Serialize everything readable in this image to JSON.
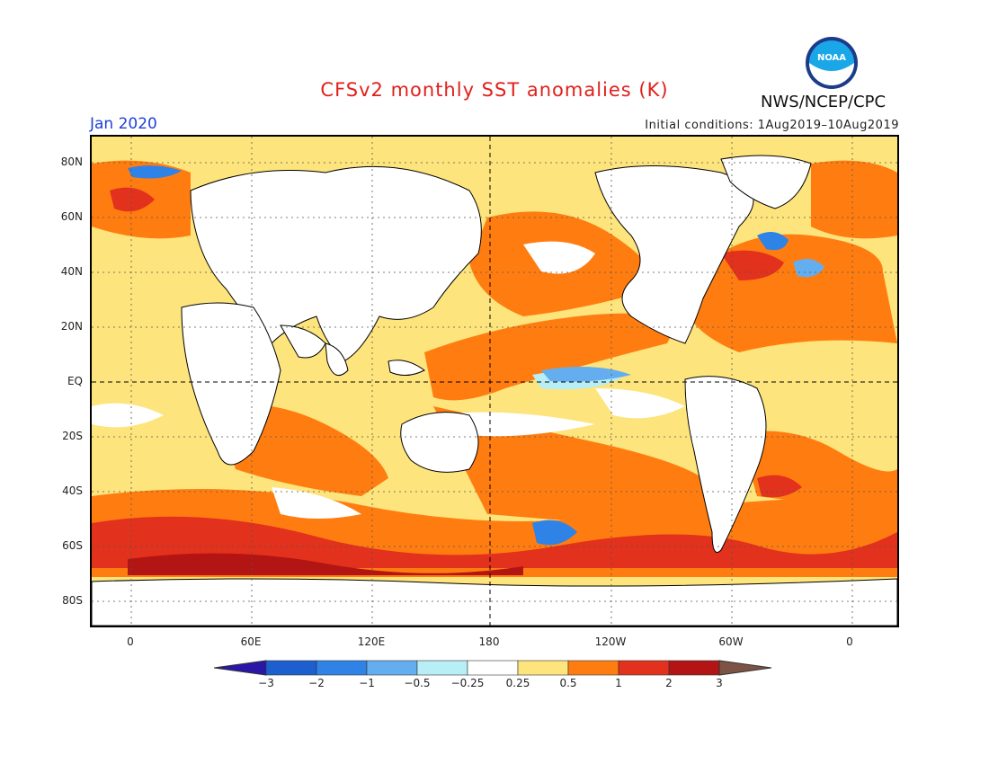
{
  "title": "CFSv2 monthly SST anomalies (K)",
  "valid_month": "Jan 2020",
  "initial_conditions": "Initial conditions: 1Aug2019–10Aug2019",
  "organization": "NWS/NCEP/CPC",
  "logo_text": "NOAA",
  "map": {
    "lat_labels": [
      "80N",
      "60N",
      "40N",
      "20N",
      "EQ",
      "20S",
      "40S",
      "60S",
      "80S"
    ],
    "lon_labels": [
      "0",
      "60E",
      "120E",
      "180",
      "120W",
      "60W",
      "0"
    ]
  },
  "colorbar": {
    "tick_labels": [
      "−3",
      "−2",
      "−1",
      "−0.5",
      "−0.25",
      "0.25",
      "0.5",
      "1",
      "2",
      "3"
    ],
    "colors": [
      "#2a17a8",
      "#1e5fd0",
      "#2f82e6",
      "#64aef0",
      "#b8eef5",
      "#ffffff",
      "#fde47c",
      "#ff7d10",
      "#e2311c",
      "#b31414",
      "#7d5346"
    ]
  },
  "colors": {
    "title": "#e0201a",
    "valid_month": "#1f3fd8",
    "land": "#ffffff",
    "coast": "#000000"
  }
}
